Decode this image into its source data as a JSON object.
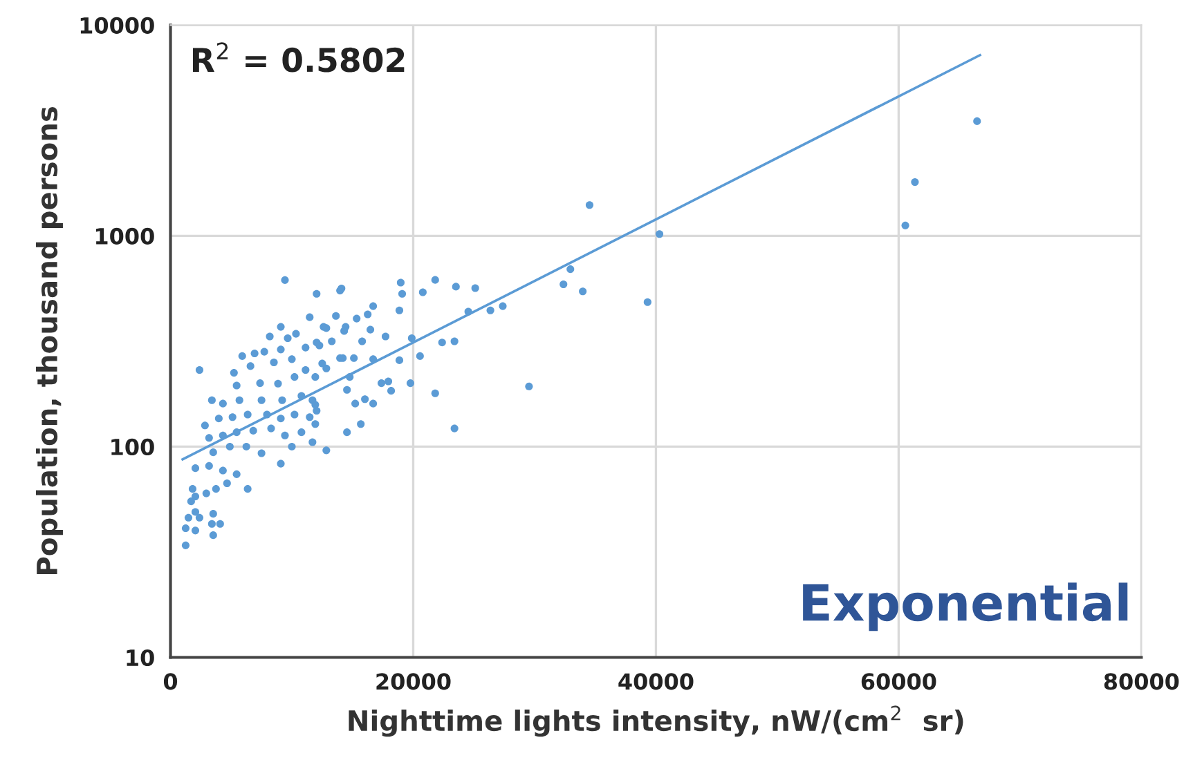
{
  "chart_data": {
    "type": "scatter",
    "xlabel": "Nighttime lights intensity, nW/(cm$^{2}$  sr)",
    "ylabel": "Population, thousand persons",
    "annotations": [
      "R$^{2}$ = 0.5802",
      "Exponential"
    ],
    "log": "y",
    "xlim": [
      0,
      80000
    ],
    "xticks": [
      0,
      20000,
      40000,
      60000,
      80000
    ],
    "ylim": [
      10,
      10000
    ],
    "yticks": [
      10,
      100,
      1000,
      10000
    ],
    "grid": true,
    "series": [
      {
        "marker": "circle",
        "color": "#5b9bd5",
        "x": [
          66460,
          61340,
          60550,
          40290,
          34530,
          32950,
          32380,
          33970,
          39310,
          29540,
          23400,
          20790,
          21810,
          23520,
          25110,
          24540,
          26360,
          27380,
          20560,
          22380,
          23400,
          21810,
          9430,
          12040,
          14090,
          18970,
          19090,
          18860,
          16700,
          16250,
          15340,
          13630,
          11470,
          12610,
          14430,
          16470,
          17720,
          19880,
          15790,
          13290,
          13970,
          16700,
          18860,
          15110,
          12500,
          17380,
          17950,
          19770,
          18180,
          14540,
          15220,
          16020,
          16700,
          14540,
          15680,
          12840,
          11700,
          11930,
          12040,
          11700,
          10790,
          13970,
          9090,
          8180,
          9660,
          10340,
          12840,
          12270,
          14310,
          5910,
          6930,
          7730,
          9090,
          11130,
          12040,
          14200,
          2390,
          5230,
          6590,
          8520,
          10000,
          11130,
          12840,
          5450,
          7380,
          8860,
          10220,
          11930,
          14770,
          3410,
          4320,
          5680,
          7500,
          9200,
          10790,
          11930,
          2840,
          3980,
          5110,
          6360,
          7950,
          9090,
          10220,
          11470,
          3180,
          4320,
          5450,
          6820,
          8290,
          9430,
          3520,
          4890,
          6250,
          7500,
          9090,
          10000,
          2050,
          3180,
          4320,
          5450,
          6360,
          4660,
          1820,
          2950,
          3750,
          1700,
          2050,
          3520,
          1250,
          2050,
          3410,
          4090,
          3520,
          1250,
          2390,
          1480,
          2050
        ],
        "values": [
          3500,
          1800,
          1120,
          1020,
          1400,
          695,
          589,
          545,
          485,
          193,
          122,
          540,
          618,
          574,
          565,
          437,
          443,
          464,
          269,
          312,
          316,
          179,
          617,
          531,
          563,
          600,
          531,
          443,
          464,
          424,
          405,
          417,
          411,
          370,
          370,
          359,
          333,
          327,
          316,
          316,
          263,
          260,
          257,
          263,
          248,
          200,
          204,
          200,
          184,
          186,
          160,
          168,
          160,
          117,
          128,
          96,
          105,
          128,
          148,
          166,
          117,
          550,
          370,
          333,
          327,
          343,
          365,
          302,
          354,
          269,
          277,
          282,
          289,
          295,
          312,
          263,
          231,
          224,
          241,
          251,
          260,
          231,
          235,
          195,
          200,
          199,
          214,
          214,
          214,
          166,
          160,
          166,
          166,
          166,
          174,
          158,
          126,
          136,
          138,
          142,
          142,
          136,
          142,
          138,
          110,
          113,
          117,
          119,
          122,
          113,
          94,
          100,
          100,
          93,
          83,
          100,
          79,
          81,
          77,
          74,
          63,
          67,
          63,
          60,
          63,
          55,
          49,
          48,
          41,
          40,
          43,
          43,
          38,
          34,
          46,
          46,
          58
        ]
      },
      {
        "type": "line",
        "color": "#5b9bd5",
        "x": [
          1000,
          66700
        ],
        "values": [
          87,
          7200
        ]
      }
    ]
  }
}
